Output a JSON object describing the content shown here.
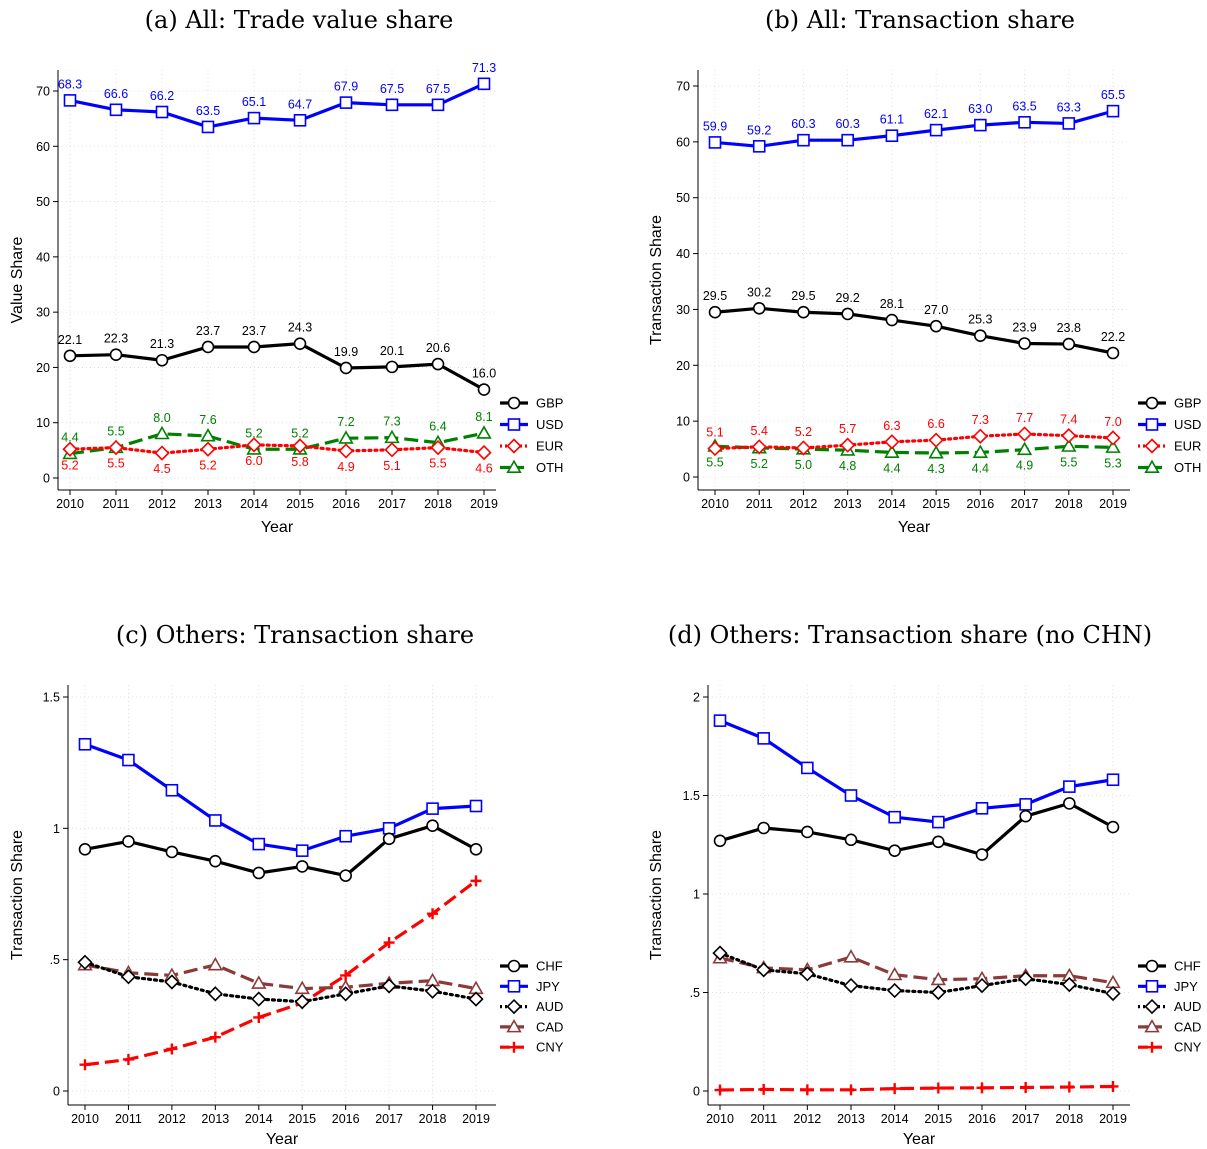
{
  "chart_data": [
    {
      "type": "line",
      "title": "(a) All: Trade value share",
      "xlabel": "Year",
      "ylabel": "Value Share",
      "x": [
        2010,
        2011,
        2012,
        2013,
        2014,
        2015,
        2016,
        2017,
        2018,
        2019
      ],
      "ylim": [
        0,
        72
      ],
      "yticks": [
        0,
        10,
        20,
        30,
        40,
        50,
        60,
        70
      ],
      "ytick_labels": [
        "0",
        "10",
        "20",
        "30",
        "40",
        "50",
        "60",
        "70"
      ],
      "grid": true,
      "legend": "right",
      "show_labels": true,
      "series": [
        {
          "name": "GBP",
          "color": "#000000",
          "dash": "solid",
          "marker": "circle",
          "values": [
            22.1,
            22.3,
            21.3,
            23.7,
            23.7,
            24.3,
            19.9,
            20.1,
            20.6,
            16.0
          ],
          "labels": [
            "22.1",
            "22.3",
            "21.3",
            "23.7",
            "23.7",
            "24.3",
            "19.9",
            "20.1",
            "20.6",
            "16.0"
          ],
          "label_pos": "above"
        },
        {
          "name": "USD",
          "color": "#0000ff",
          "dash": "solid",
          "marker": "square",
          "values": [
            68.3,
            66.6,
            66.2,
            63.5,
            65.1,
            64.7,
            67.9,
            67.5,
            67.5,
            71.3
          ],
          "labels": [
            "68.3",
            "66.6",
            "66.2",
            "63.5",
            "65.1",
            "64.7",
            "67.9",
            "67.5",
            "67.5",
            "71.3"
          ],
          "label_pos": "above"
        },
        {
          "name": "EUR",
          "color": "#ff0000",
          "dash": "dot",
          "marker": "diamond",
          "values": [
            5.2,
            5.5,
            4.5,
            5.2,
            6.0,
            5.8,
            4.9,
            5.1,
            5.5,
            4.6
          ],
          "labels": [
            "5.2",
            "5.5",
            "4.5",
            "5.2",
            "6.0",
            "5.8",
            "4.9",
            "5.1",
            "5.5",
            "4.6"
          ],
          "label_pos": "below"
        },
        {
          "name": "OTH",
          "color": "#008000",
          "dash": "longdash",
          "marker": "triangle",
          "values": [
            4.4,
            5.5,
            8.0,
            7.6,
            5.2,
            5.2,
            7.2,
            7.3,
            6.4,
            8.1
          ],
          "labels": [
            "4.4",
            "5.5",
            "8.0",
            "7.6",
            "5.2",
            "5.2",
            "7.2",
            "7.3",
            "6.4",
            "8.1"
          ],
          "label_pos": "above"
        }
      ]
    },
    {
      "type": "line",
      "title": "(b) All: Transaction share",
      "xlabel": "Year",
      "ylabel": "Transaction Share",
      "x": [
        2010,
        2011,
        2012,
        2013,
        2014,
        2015,
        2016,
        2017,
        2018,
        2019
      ],
      "ylim": [
        0,
        70.5
      ],
      "yticks": [
        0,
        10,
        20,
        30,
        40,
        50,
        60,
        70
      ],
      "ytick_labels": [
        "0",
        "10",
        "20",
        "30",
        "40",
        "50",
        "60",
        "70"
      ],
      "grid": true,
      "legend": "right",
      "show_labels": true,
      "series": [
        {
          "name": "GBP",
          "color": "#000000",
          "dash": "solid",
          "marker": "circle",
          "values": [
            29.5,
            30.2,
            29.5,
            29.2,
            28.1,
            27.0,
            25.3,
            23.9,
            23.8,
            22.2
          ],
          "labels": [
            "29.5",
            "30.2",
            "29.5",
            "29.2",
            "28.1",
            "27.0",
            "25.3",
            "23.9",
            "23.8",
            "22.2"
          ],
          "label_pos": "above"
        },
        {
          "name": "USD",
          "color": "#0000ff",
          "dash": "solid",
          "marker": "square",
          "values": [
            59.9,
            59.2,
            60.3,
            60.3,
            61.1,
            62.1,
            63.0,
            63.5,
            63.3,
            65.5
          ],
          "labels": [
            "59.9",
            "59.2",
            "60.3",
            "60.3",
            "61.1",
            "62.1",
            "63.0",
            "63.5",
            "63.3",
            "65.5"
          ],
          "label_pos": "above"
        },
        {
          "name": "EUR",
          "color": "#ff0000",
          "dash": "dot",
          "marker": "diamond",
          "values": [
            5.1,
            5.4,
            5.2,
            5.7,
            6.3,
            6.6,
            7.3,
            7.7,
            7.4,
            7.0
          ],
          "labels": [
            "5.1",
            "5.4",
            "5.2",
            "5.7",
            "6.3",
            "6.6",
            "7.3",
            "7.7",
            "7.4",
            "7.0"
          ],
          "label_pos": "above"
        },
        {
          "name": "OTH",
          "color": "#008000",
          "dash": "longdash",
          "marker": "triangle",
          "values": [
            5.5,
            5.2,
            5.0,
            4.8,
            4.4,
            4.3,
            4.4,
            4.9,
            5.5,
            5.3
          ],
          "labels": [
            "5.5",
            "5.2",
            "5.0",
            "4.8",
            "4.4",
            "4.3",
            "4.4",
            "4.9",
            "5.5",
            "5.3"
          ],
          "label_pos": "below"
        }
      ]
    },
    {
      "type": "line",
      "title": "(c) Others: Transaction share",
      "xlabel": "Year",
      "ylabel": "Transaction Share",
      "x": [
        2010,
        2011,
        2012,
        2013,
        2014,
        2015,
        2016,
        2017,
        2018,
        2019
      ],
      "ylim": [
        0,
        1.5
      ],
      "yticks": [
        0,
        0.5,
        1,
        1.5
      ],
      "ytick_labels": [
        "0",
        ".5",
        "1",
        "1.5"
      ],
      "grid": true,
      "legend": "right",
      "show_labels": false,
      "series": [
        {
          "name": "CHF",
          "color": "#000000",
          "dash": "solid",
          "marker": "circle",
          "values": [
            0.92,
            0.95,
            0.91,
            0.875,
            0.83,
            0.855,
            0.82,
            0.96,
            1.01,
            0.92
          ]
        },
        {
          "name": "JPY",
          "color": "#0000ff",
          "dash": "solid",
          "marker": "square",
          "values": [
            1.32,
            1.26,
            1.145,
            1.03,
            0.94,
            0.915,
            0.97,
            1.0,
            1.075,
            1.085
          ]
        },
        {
          "name": "AUD",
          "color": "#000000",
          "dash": "dot",
          "marker": "diamond",
          "values": [
            0.49,
            0.435,
            0.415,
            0.37,
            0.35,
            0.34,
            0.37,
            0.4,
            0.38,
            0.35
          ]
        },
        {
          "name": "CAD",
          "color": "#8b3a3a",
          "dash": "longdash",
          "marker": "triangle",
          "values": [
            0.48,
            0.45,
            0.44,
            0.48,
            0.41,
            0.39,
            0.395,
            0.41,
            0.42,
            0.39
          ]
        },
        {
          "name": "CNY",
          "color": "#ff0000",
          "dash": "longdash",
          "marker": "plus",
          "values": [
            0.1,
            0.12,
            0.16,
            0.205,
            0.28,
            0.335,
            0.44,
            0.565,
            0.675,
            0.8
          ]
        }
      ]
    },
    {
      "type": "line",
      "title": "(d) Others: Transaction share (no CHN)",
      "xlabel": "Year",
      "ylabel": "Transaction Share",
      "x": [
        2010,
        2011,
        2012,
        2013,
        2014,
        2015,
        2016,
        2017,
        2018,
        2019
      ],
      "ylim": [
        0,
        2
      ],
      "yticks": [
        0,
        0.5,
        1,
        1.5,
        2
      ],
      "ytick_labels": [
        "0",
        ".5",
        "1",
        "1.5",
        "2"
      ],
      "grid": true,
      "legend": "right",
      "show_labels": false,
      "series": [
        {
          "name": "CHF",
          "color": "#000000",
          "dash": "solid",
          "marker": "circle",
          "values": [
            1.27,
            1.335,
            1.315,
            1.275,
            1.22,
            1.265,
            1.2,
            1.395,
            1.46,
            1.34
          ]
        },
        {
          "name": "JPY",
          "color": "#0000ff",
          "dash": "solid",
          "marker": "square",
          "values": [
            1.88,
            1.79,
            1.64,
            1.5,
            1.39,
            1.365,
            1.435,
            1.455,
            1.545,
            1.58
          ]
        },
        {
          "name": "AUD",
          "color": "#000000",
          "dash": "dot",
          "marker": "diamond",
          "values": [
            0.7,
            0.615,
            0.595,
            0.535,
            0.51,
            0.5,
            0.535,
            0.57,
            0.54,
            0.495
          ]
        },
        {
          "name": "CAD",
          "color": "#8b3a3a",
          "dash": "longdash",
          "marker": "triangle",
          "values": [
            0.675,
            0.625,
            0.615,
            0.68,
            0.59,
            0.565,
            0.57,
            0.585,
            0.585,
            0.55
          ]
        },
        {
          "name": "CNY",
          "color": "#ff0000",
          "dash": "longdash",
          "marker": "plus",
          "values": [
            0.005,
            0.008,
            0.006,
            0.006,
            0.012,
            0.015,
            0.016,
            0.018,
            0.02,
            0.023
          ]
        }
      ]
    }
  ]
}
